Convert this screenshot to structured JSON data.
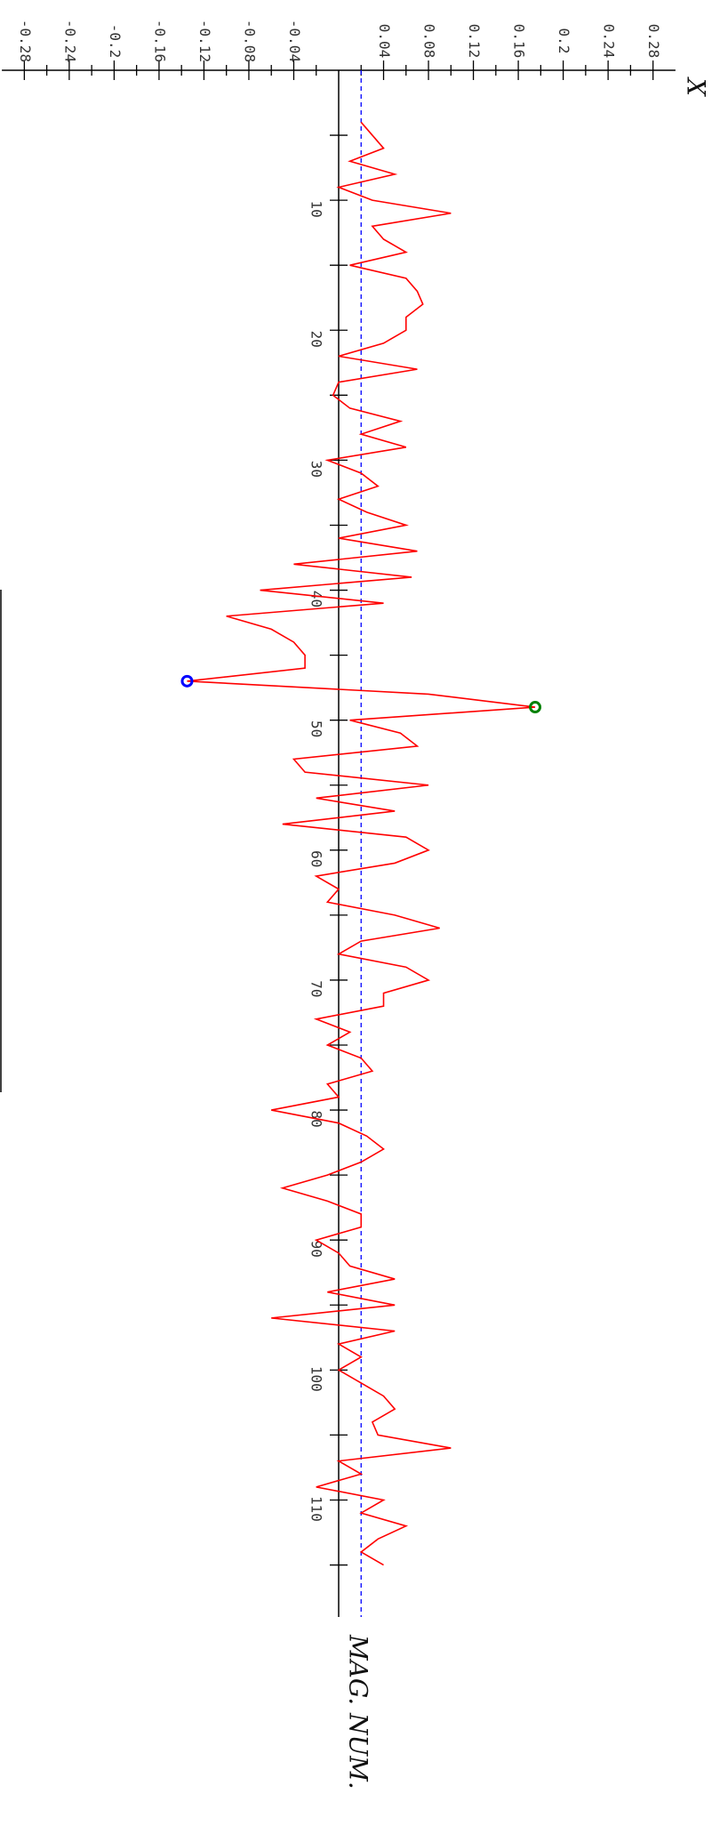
{
  "chart_data": {
    "type": "line",
    "x_label": "MAG. NUM.",
    "y_label": "X",
    "x": [
      4,
      5,
      6,
      7,
      8,
      9,
      10,
      11,
      12,
      13,
      14,
      15,
      16,
      17,
      18,
      19,
      20,
      21,
      22,
      23,
      24,
      25,
      26,
      27,
      28,
      29,
      30,
      31,
      32,
      33,
      34,
      35,
      36,
      37,
      38,
      39,
      40,
      41,
      42,
      43,
      44,
      45,
      46,
      47,
      48,
      49,
      50,
      51,
      52,
      53,
      54,
      55,
      56,
      57,
      58,
      59,
      60,
      61,
      62,
      63,
      64,
      65,
      66,
      67,
      68,
      69,
      70,
      71,
      72,
      73,
      74,
      75,
      76,
      77,
      78,
      79,
      80,
      81,
      82,
      83,
      84,
      85,
      86,
      87,
      88,
      89,
      90,
      91,
      92,
      93,
      94,
      95,
      96,
      97,
      98,
      99,
      100,
      101,
      102,
      103,
      104,
      105,
      106,
      107,
      108,
      109,
      110,
      111,
      112,
      113,
      114,
      115
    ],
    "series": [
      {
        "color": "#ff0000",
        "values": [
          0.02,
          0.03,
          0.04,
          0.01,
          0.05,
          0.0,
          0.03,
          0.1,
          0.03,
          0.04,
          0.06,
          0.01,
          0.06,
          0.07,
          0.075,
          0.06,
          0.06,
          0.04,
          0.0,
          0.07,
          0.0,
          -0.005,
          0.01,
          0.055,
          0.02,
          0.06,
          -0.01,
          0.02,
          0.035,
          0.0,
          0.025,
          0.06,
          0.0,
          0.07,
          -0.04,
          0.065,
          -0.07,
          0.04,
          -0.1,
          -0.06,
          -0.04,
          -0.03,
          -0.03,
          -0.135,
          0.08,
          0.175,
          0.01,
          0.055,
          0.07,
          -0.04,
          -0.03,
          0.08,
          -0.02,
          0.05,
          -0.05,
          0.06,
          0.08,
          0.05,
          -0.02,
          0.0,
          -0.01,
          0.05,
          0.09,
          0.02,
          0.0,
          0.06,
          0.08,
          0.04,
          0.04,
          -0.02,
          0.01,
          -0.01,
          0.02,
          0.03,
          -0.01,
          0.0,
          -0.06,
          0.0,
          0.025,
          0.04,
          0.02,
          -0.01,
          -0.05,
          -0.01,
          0.02,
          0.02,
          -0.02,
          0.0,
          0.01,
          0.05,
          -0.01,
          0.05,
          -0.06,
          0.05,
          0.0,
          0.02,
          0.0,
          0.02,
          0.04,
          0.05,
          0.03,
          0.035,
          0.1,
          0.0,
          0.02,
          -0.02,
          0.04,
          0.02,
          0.06,
          0.035,
          0.02,
          0.04
        ]
      }
    ],
    "mean_line": {
      "value": 0.02,
      "color": "#0000ff"
    },
    "min_marker": {
      "index": 43,
      "color": "#0000ff"
    },
    "max_marker": {
      "index": 45,
      "color": "#008000"
    },
    "xlim": [
      0,
      119
    ],
    "xticks": [
      10,
      20,
      30,
      40,
      50,
      60,
      70,
      80,
      90,
      100,
      110
    ],
    "xminorticks": [
      5,
      15,
      25,
      35,
      45,
      55,
      65,
      75,
      85,
      95,
      105,
      115
    ],
    "ylim": [
      -0.3,
      0.3
    ],
    "yticks": [
      -0.28,
      -0.24,
      -0.2,
      -0.16,
      -0.12,
      -0.08,
      -0.04,
      0.04,
      0.08,
      0.12,
      0.16,
      0.2,
      0.24,
      0.28
    ],
    "yminorticks": [
      -0.26,
      -0.22,
      -0.18,
      -0.14,
      -0.1,
      -0.06,
      -0.02,
      0.02,
      0.06,
      0.1,
      0.14,
      0.18,
      0.22,
      0.26
    ]
  }
}
